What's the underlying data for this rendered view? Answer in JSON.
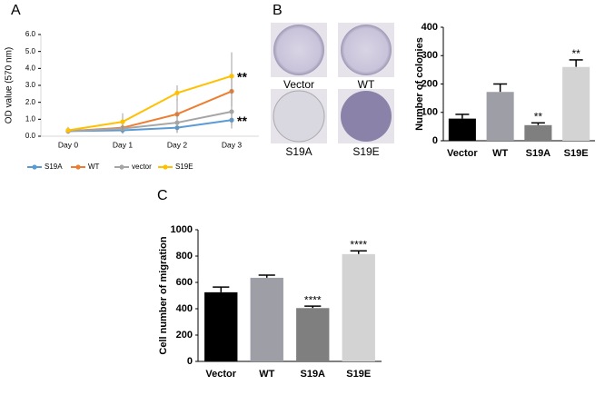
{
  "chart_data": [
    {
      "type": "line",
      "panel_label": "A",
      "ylabel": "OD value (570 nm)",
      "categories": [
        "Day 0",
        "Day 1",
        "Day 2",
        "Day 3"
      ],
      "ylim": [
        0,
        6
      ],
      "yticks": [
        {
          "value": 0,
          "label": "0.0"
        },
        {
          "value": 1,
          "label": "1.0"
        },
        {
          "value": 2,
          "label": "2.0"
        },
        {
          "value": 3,
          "label": "3.0"
        },
        {
          "value": 4,
          "label": "4.0"
        },
        {
          "value": 5,
          "label": "5.0"
        },
        {
          "value": 6,
          "label": "6.0"
        }
      ],
      "series": [
        {
          "name": "S19A",
          "color": "#5b9bd5",
          "values": [
            0.3,
            0.35,
            0.5,
            0.95
          ],
          "errors": [
            0.1,
            0.2,
            0.3,
            0.5
          ]
        },
        {
          "name": "WT",
          "color": "#ed7d31",
          "values": [
            0.3,
            0.5,
            1.3,
            2.65
          ],
          "errors": [
            0.15,
            0.3,
            0.9,
            0.9
          ]
        },
        {
          "name": "vector",
          "color": "#a5a5a5",
          "values": [
            0.3,
            0.45,
            0.8,
            1.45
          ],
          "errors": [
            0.15,
            0.3,
            0.6,
            0.8
          ]
        },
        {
          "name": "S19E",
          "color": "#ffc000",
          "values": [
            0.35,
            0.85,
            2.55,
            3.55
          ],
          "errors": [
            0.2,
            0.5,
            0.45,
            1.4
          ]
        }
      ],
      "annotations": [
        {
          "text": "**",
          "series": 3
        },
        {
          "text": "**",
          "series": 0
        }
      ]
    },
    {
      "type": "bar",
      "panel_label": "B",
      "ylabel": "Number of colonies",
      "categories": [
        "Vector",
        "WT",
        "S19A",
        "S19E"
      ],
      "values": [
        78,
        172,
        55,
        260
      ],
      "errors": [
        15,
        28,
        8,
        25
      ],
      "colors": [
        "#000000",
        "#9e9ea6",
        "#7f7f7f",
        "#d3d3d3"
      ],
      "ylim": [
        0,
        400
      ],
      "yticks": [
        0,
        100,
        200,
        300,
        400
      ],
      "annotations": [
        {
          "text": "**",
          "category": 2
        },
        {
          "text": "**",
          "category": 3
        }
      ]
    },
    {
      "type": "bar",
      "panel_label": "C",
      "ylabel": "Cell number of migration",
      "categories": [
        "Vector",
        "WT",
        "S19A",
        "S19E"
      ],
      "values": [
        525,
        635,
        405,
        815
      ],
      "errors": [
        40,
        20,
        15,
        25
      ],
      "colors": [
        "#000000",
        "#9e9ea6",
        "#7f7f7f",
        "#d3d3d3"
      ],
      "ylim": [
        0,
        1000
      ],
      "yticks": [
        0,
        200,
        400,
        600,
        800,
        1000
      ],
      "annotations": [
        {
          "text": "****",
          "category": 2
        },
        {
          "text": "****",
          "category": 3
        }
      ]
    }
  ],
  "colony_images": {
    "labels": [
      "Vector",
      "WT",
      "S19A",
      "S19E"
    ]
  }
}
